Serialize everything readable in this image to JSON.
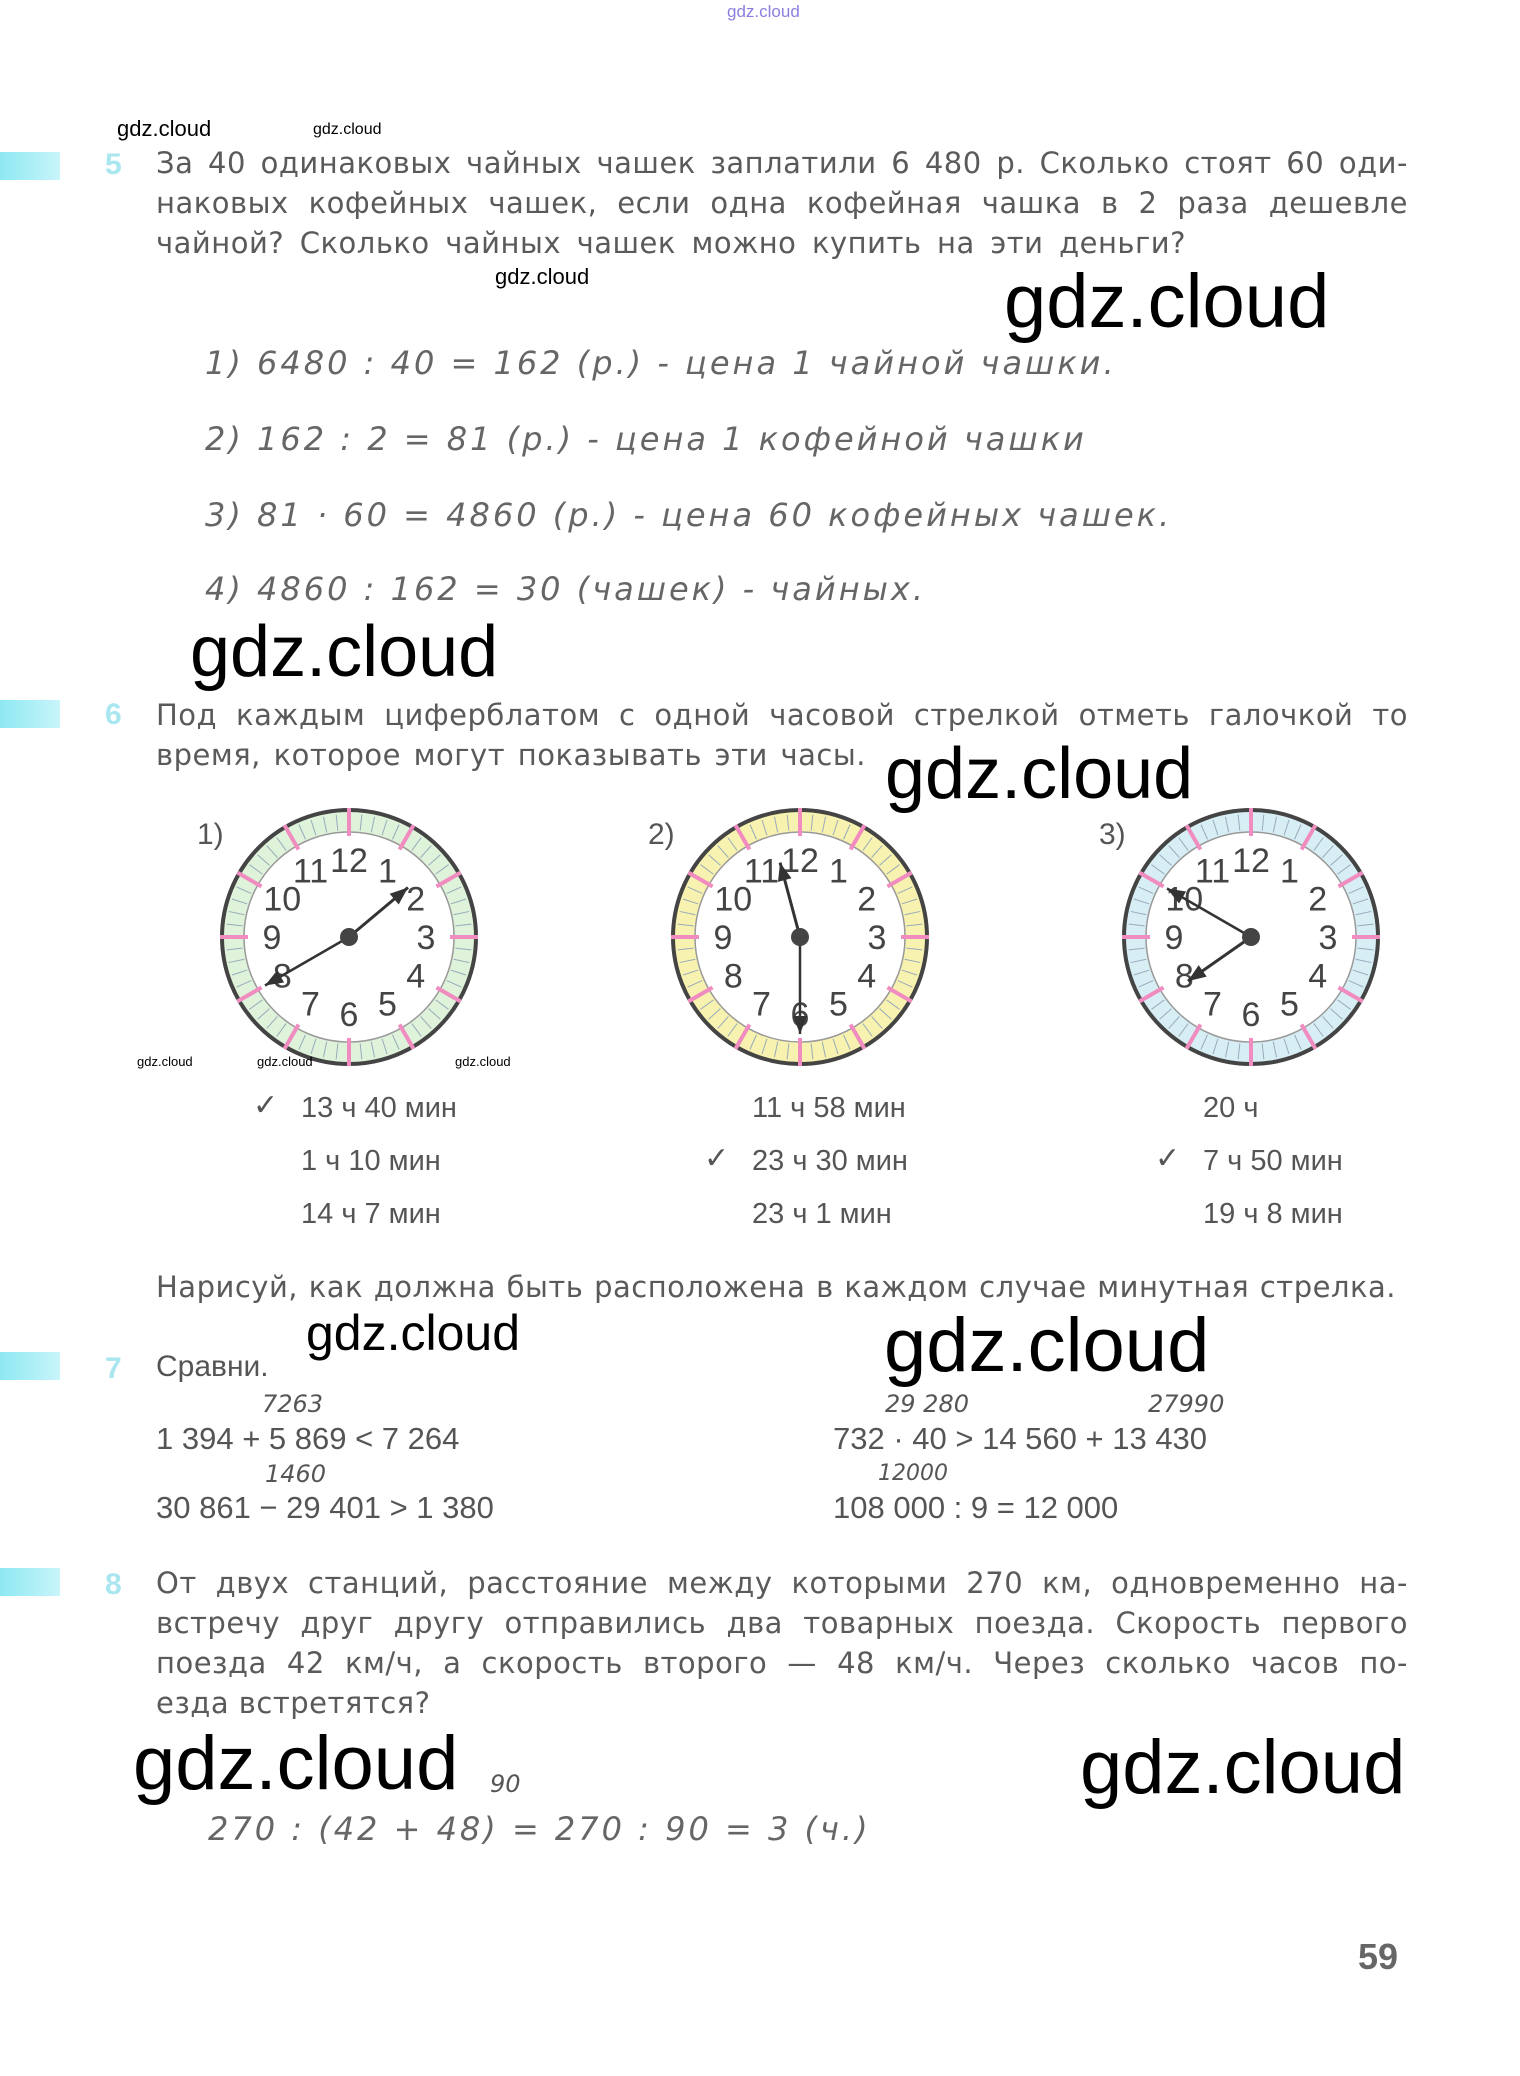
{
  "watermarks": {
    "top": "gdz.cloud",
    "mark": "gdz.cloud"
  },
  "task5": {
    "number": "5",
    "lines": [
      "За 40 одинаковых чайных чашек заплатили 6 480 р. Сколько стоят 60 оди-",
      "наковых кофейных чашек, если одна кофейная чашка в 2 раза дешевле",
      "чайной? Сколько чайных чашек можно купить на эти деньги?"
    ],
    "solution": [
      "1)  6480 : 40 = 162 (р.) - цена  1 чайной чашки.",
      "2)  162 : 2 = 81 (р.) - цена  1  кофейной чашки",
      "3)  81 · 60 = 4860 (р.) - цена 60 кофейных чашек.",
      "4)  4860 : 162 = 30 (чашек) - чайных."
    ]
  },
  "task6": {
    "number": "6",
    "lines": [
      "Под каждым циферблатом с одной часовой стрелкой отметь галочкой то",
      "время, которое могут показывать эти часы."
    ],
    "check_mark": "✓",
    "clocks": [
      {
        "label": "1)",
        "ring_color": "#dff2da",
        "times": [
          "13 ч  40 мин",
          "1 ч  10 мин",
          "14 ч  7 мин"
        ],
        "checked": 0,
        "hour": 13,
        "minute": 40
      },
      {
        "label": "2)",
        "ring_color": "#f7f2b0",
        "times": [
          "11 ч  58 мин",
          "23 ч  30 мин",
          "23 ч  1 мин"
        ],
        "checked": 1,
        "hour": 23,
        "minute": 30
      },
      {
        "label": "3)",
        "ring_color": "#d8eef5",
        "times": [
          "20 ч",
          "7 ч  50 мин",
          "19 ч  8 мин"
        ],
        "checked": 1,
        "hour": 7,
        "minute": 50
      }
    ],
    "numerals": [
      "12",
      "1",
      "2",
      "3",
      "4",
      "5",
      "6",
      "7",
      "8",
      "9",
      "10",
      "11"
    ],
    "footer": "Нарисуй, как должна быть расположена в каждом случае минутная стрелка."
  },
  "task7": {
    "number": "7",
    "title": "Сравни.",
    "items": [
      {
        "expr": "1 394 + 5 869  <  7 264",
        "note": "7263"
      },
      {
        "expr": "30 861 − 29 401  >  1 380",
        "note": "1460"
      },
      {
        "expr": "732 · 40  >  14 560 + 13 430",
        "note": "29 280",
        "note2": "27990"
      },
      {
        "expr": "108 000 : 9  =  12 000",
        "note": "12000"
      }
    ]
  },
  "task8": {
    "number": "8",
    "lines": [
      "От двух станций, расстояние между которыми 270 км, одновременно на-",
      "встречу друг другу отправились два товарных поезда. Скорость первого",
      "поезда 42 км/ч, а скорость второго — 48 км/ч. Через сколько часов по-",
      "езда встретятся?"
    ],
    "note": "90",
    "solution": "270 : (42 + 48) = 270 : 90 = 3 (ч.)"
  },
  "page_number": "59"
}
